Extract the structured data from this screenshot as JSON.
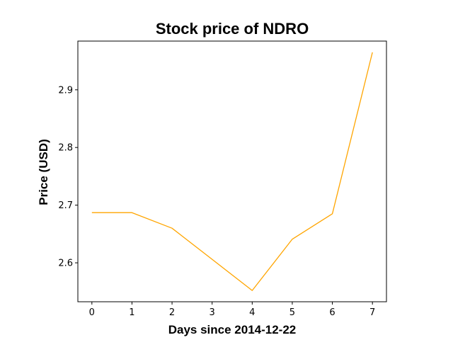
{
  "chart_data": {
    "type": "line",
    "title": "Stock price of NDRO",
    "xlabel": "Days since 2014-12-22",
    "ylabel": "Price (USD)",
    "x": [
      0,
      1,
      2,
      3,
      4,
      5,
      6,
      7
    ],
    "series": [
      {
        "values": [
          2.687,
          2.687,
          2.66,
          2.606,
          2.552,
          2.641,
          2.685,
          2.965
        ],
        "color": "#ffa500"
      }
    ],
    "xticks": [
      "0",
      "1",
      "2",
      "3",
      "4",
      "5",
      "6",
      "7"
    ],
    "yticks": [
      "2.6",
      "2.7",
      "2.8",
      "2.9"
    ],
    "xlim": [
      -0.35,
      7.35
    ],
    "ylim": [
      2.5325,
      2.9845
    ],
    "grid": false,
    "legend": "none"
  }
}
